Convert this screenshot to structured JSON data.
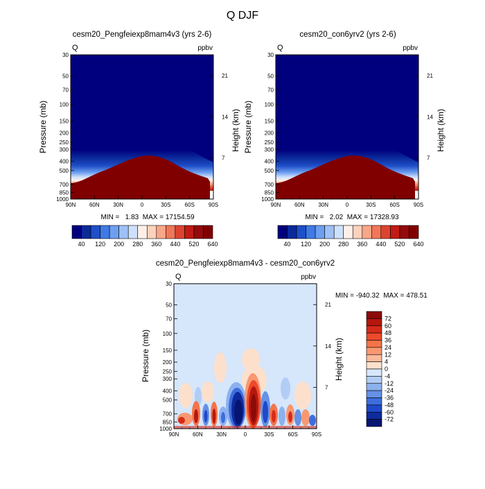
{
  "title": "Q DJF",
  "panels": {
    "top_left": {
      "title": "cesm20_Pengfeiexp8mam4v3 (yrs 2-6)",
      "corner_left": "Q",
      "corner_right": "ppbv",
      "stats": "MIN =   1.83  MAX = 17154.59"
    },
    "top_right": {
      "title": "cesm20_con6yrv2 (yrs 2-6)",
      "corner_left": "Q",
      "corner_right": "ppbv",
      "stats": "MIN =   2.02  MAX = 17328.93"
    },
    "bottom": {
      "title": "cesm20_Pengfeiexp8mam4v3 - cesm20_con6yrv2",
      "corner_left": "Q",
      "corner_right": "ppbv",
      "stats": "MIN = -940.32  MAX = 478.51"
    }
  },
  "axes": {
    "ylabel": "Pressure (mb)",
    "ylabel_right": "Height (km)",
    "x_ticks": [
      "90N",
      "60N",
      "30N",
      "0",
      "30S",
      "60S",
      "90S"
    ],
    "x_values": [
      90,
      60,
      30,
      0,
      -30,
      -60,
      -90
    ],
    "p_ticks": [
      "30",
      "50",
      "70",
      "100",
      "150",
      "200",
      "250",
      "300",
      "400",
      "500",
      "700",
      "850",
      "1000"
    ],
    "p_values": [
      30,
      50,
      70,
      100,
      150,
      200,
      250,
      300,
      400,
      500,
      700,
      850,
      1000
    ],
    "p_range": [
      30,
      1000
    ],
    "p_scale": "log",
    "h_ticks": [
      "21",
      "14",
      "7"
    ],
    "h_values": [
      21,
      14,
      7
    ]
  },
  "colorbar_top": {
    "labels": [
      "40",
      "120",
      "200",
      "280",
      "360",
      "440",
      "520",
      "640"
    ],
    "colors": [
      "#00007f",
      "#0a2a9a",
      "#1f4fc8",
      "#3f7ae6",
      "#6d9ff0",
      "#9ec0f6",
      "#cfe0fb",
      "#fef0e8",
      "#fcd2bc",
      "#f9a688",
      "#f07658",
      "#dd4430",
      "#c01b14",
      "#950b0b",
      "#800000"
    ]
  },
  "colorbar_bottom": {
    "labels": [
      "72",
      "60",
      "48",
      "36",
      "24",
      "12",
      "4",
      "0",
      "-4",
      "-12",
      "-24",
      "-36",
      "-48",
      "-60",
      "-72"
    ],
    "colors": [
      "#8b0a0a",
      "#b5170f",
      "#d52b1a",
      "#ec4a2b",
      "#f47449",
      "#f89870",
      "#fbbb9c",
      "#fde0cc",
      "#d6e6fb",
      "#b2cdf5",
      "#8db1ee",
      "#6591e6",
      "#3d6ddd",
      "#1f49c8",
      "#0e2a9c",
      "#061572"
    ]
  },
  "chart_data": [
    {
      "type": "heatmap",
      "title": "cesm20_Pengfeiexp8mam4v3 (yrs 2-6)",
      "units": "ppbv",
      "xlabel": "",
      "ylabel": "Pressure (mb)",
      "x": [
        90,
        60,
        30,
        0,
        -30,
        -60,
        -90
      ],
      "ylim": [
        1000,
        30
      ],
      "min": 1.83,
      "max": 17154.59,
      "levels": [
        40,
        120,
        200,
        280,
        360,
        440,
        520,
        640
      ]
    },
    {
      "type": "heatmap",
      "title": "cesm20_con6yrv2 (yrs 2-6)",
      "units": "ppbv",
      "xlabel": "",
      "ylabel": "Pressure (mb)",
      "x": [
        90,
        60,
        30,
        0,
        -30,
        -60,
        -90
      ],
      "ylim": [
        1000,
        30
      ],
      "min": 2.02,
      "max": 17328.93,
      "levels": [
        40,
        120,
        200,
        280,
        360,
        440,
        520,
        640
      ]
    },
    {
      "type": "heatmap",
      "title": "cesm20_Pengfeiexp8mam4v3 - cesm20_con6yrv2",
      "units": "ppbv",
      "xlabel": "",
      "ylabel": "Pressure (mb)",
      "x": [
        90,
        60,
        30,
        0,
        -30,
        -60,
        -90
      ],
      "ylim": [
        1000,
        30
      ],
      "min": -940.32,
      "max": 478.51,
      "levels": [
        -72,
        -60,
        -48,
        -36,
        -24,
        -12,
        -4,
        0,
        4,
        12,
        24,
        36,
        48,
        60,
        72
      ]
    }
  ]
}
